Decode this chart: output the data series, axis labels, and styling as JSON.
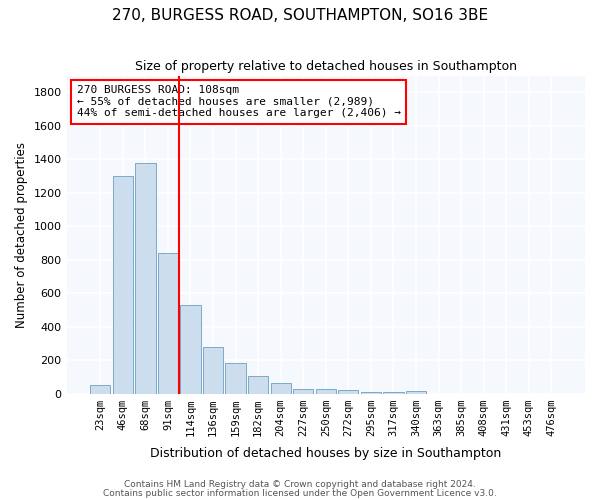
{
  "title": "270, BURGESS ROAD, SOUTHAMPTON, SO16 3BE",
  "subtitle": "Size of property relative to detached houses in Southampton",
  "xlabel": "Distribution of detached houses by size in Southampton",
  "ylabel": "Number of detached properties",
  "bar_labels": [
    "23sqm",
    "46sqm",
    "68sqm",
    "91sqm",
    "114sqm",
    "136sqm",
    "159sqm",
    "182sqm",
    "204sqm",
    "227sqm",
    "250sqm",
    "272sqm",
    "295sqm",
    "317sqm",
    "340sqm",
    "363sqm",
    "385sqm",
    "408sqm",
    "431sqm",
    "453sqm",
    "476sqm"
  ],
  "bar_values": [
    50,
    1300,
    1380,
    840,
    530,
    280,
    185,
    105,
    65,
    30,
    25,
    20,
    8,
    8,
    15,
    0,
    0,
    0,
    0,
    0,
    0
  ],
  "bar_color": "#ccdded",
  "bar_edge_color": "#7aaac8",
  "vline_color": "red",
  "annotation_text": "270 BURGESS ROAD: 108sqm\n← 55% of detached houses are smaller (2,989)\n44% of semi-detached houses are larger (2,406) →",
  "annotation_box_color": "white",
  "annotation_box_edge_color": "red",
  "ylim": [
    0,
    1900
  ],
  "yticks": [
    0,
    200,
    400,
    600,
    800,
    1000,
    1200,
    1400,
    1600,
    1800
  ],
  "footer1": "Contains HM Land Registry data © Crown copyright and database right 2024.",
  "footer2": "Contains public sector information licensed under the Open Government Licence v3.0.",
  "bg_color": "#ffffff",
  "plot_bg_color": "#f5f8fc",
  "grid_color": "#ffffff"
}
